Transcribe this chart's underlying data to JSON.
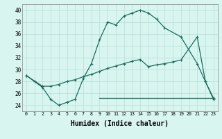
{
  "line1_x": [
    0,
    1,
    2,
    3,
    4,
    5,
    6,
    7,
    8,
    9,
    10,
    11,
    12,
    13,
    14,
    15,
    16,
    17,
    19,
    21,
    22,
    23
  ],
  "line1_y": [
    29,
    28,
    27,
    25,
    24,
    24.5,
    25,
    28.5,
    31,
    35,
    38,
    37.5,
    39,
    39.5,
    40,
    39.5,
    38.5,
    37,
    35.5,
    31,
    28,
    25
  ],
  "line2_x": [
    0,
    2,
    3,
    4,
    5,
    6,
    7,
    8,
    9,
    10,
    11,
    12,
    13,
    14,
    15,
    16,
    17,
    18,
    19,
    21,
    22,
    23
  ],
  "line2_y": [
    29,
    27.2,
    27.2,
    27.5,
    28.0,
    28.3,
    28.8,
    29.2,
    29.7,
    30.2,
    30.6,
    31.0,
    31.4,
    31.7,
    30.5,
    30.8,
    31.0,
    31.3,
    31.6,
    35.5,
    28,
    25.2
  ],
  "line3_x": [
    9,
    10,
    11,
    12,
    13,
    14,
    15,
    16,
    17,
    18,
    19,
    20,
    21,
    22,
    23
  ],
  "line3_y": [
    25.2,
    25.2,
    25.2,
    25.2,
    25.2,
    25.2,
    25.2,
    25.2,
    25.2,
    25.2,
    25.2,
    25.2,
    25.2,
    25.2,
    25.2
  ],
  "line_color": "#1a6b5e",
  "bg_color": "#d8f5f0",
  "grid_color": "#b8ddd8",
  "xlabel": "Humidex (Indice chaleur)",
  "xlabel_fontsize": 7,
  "xlim": [
    -0.5,
    23.5
  ],
  "ylim": [
    23,
    41
  ],
  "yticks": [
    24,
    26,
    28,
    30,
    32,
    34,
    36,
    38,
    40
  ],
  "xticks": [
    0,
    1,
    2,
    3,
    4,
    5,
    6,
    7,
    8,
    9,
    10,
    11,
    12,
    13,
    14,
    15,
    16,
    17,
    18,
    19,
    20,
    21,
    22,
    23
  ]
}
